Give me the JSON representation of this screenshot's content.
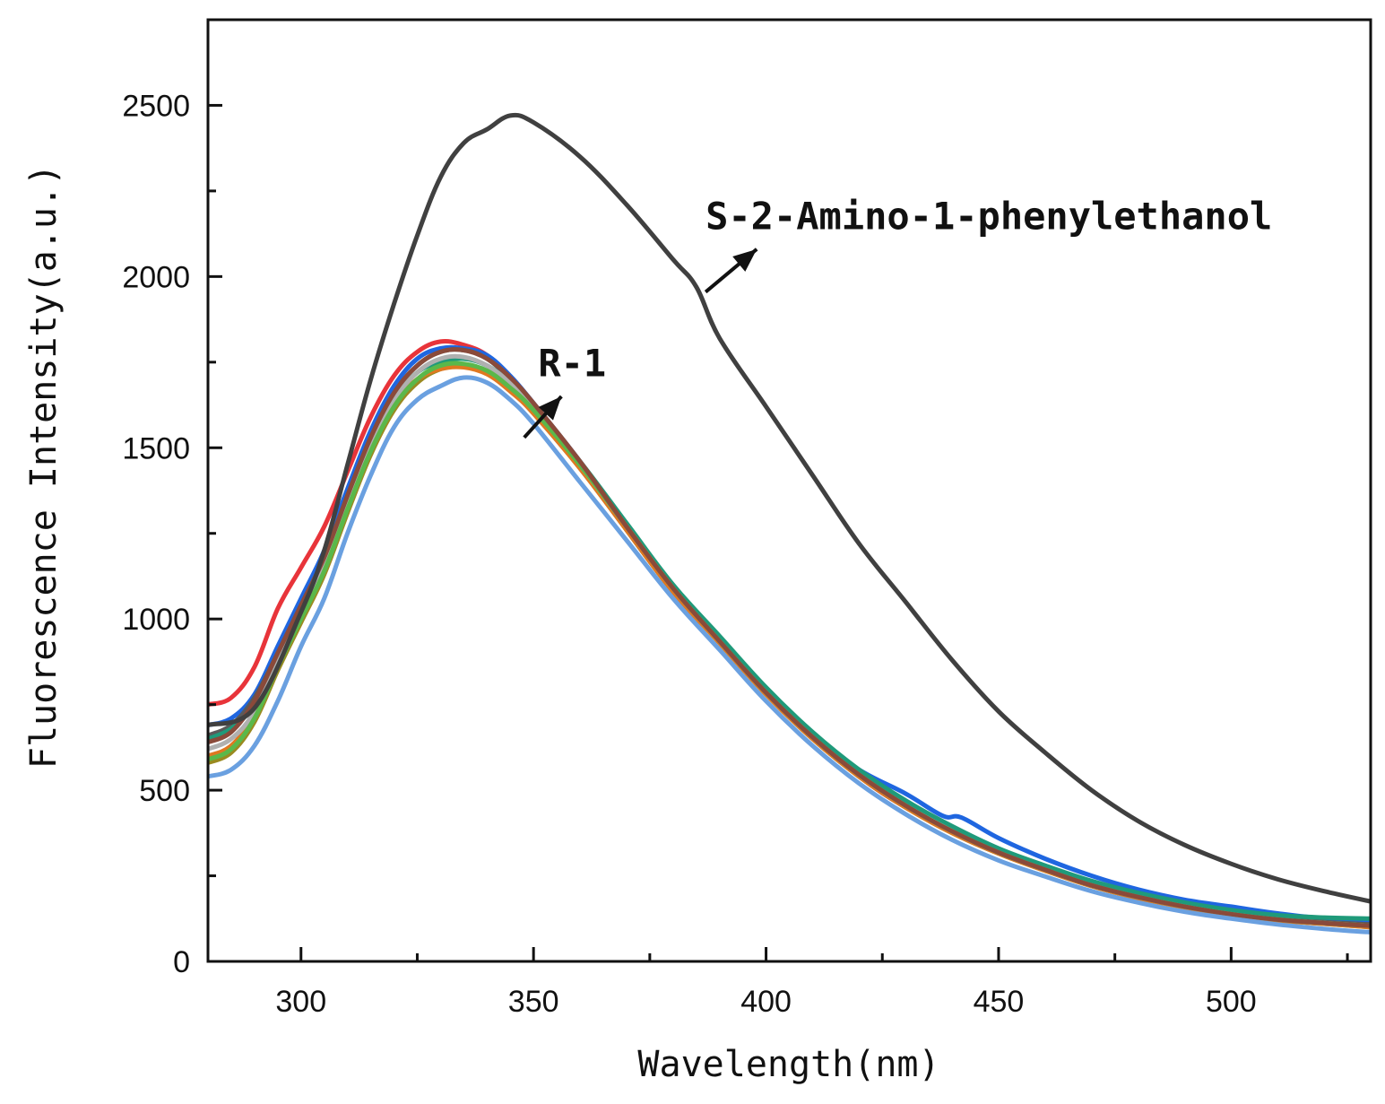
{
  "chart_data": {
    "type": "line",
    "title": "",
    "xlabel": "Wavelength(nm)",
    "ylabel": "Fluorescence Intensity(a.u.)",
    "xlim": [
      280,
      530
    ],
    "ylim": [
      0,
      2750
    ],
    "x_ticks": [
      300,
      350,
      400,
      450,
      500
    ],
    "x_minor_ticks": [
      325,
      375,
      425,
      475,
      525
    ],
    "y_ticks": [
      0,
      500,
      1000,
      1500,
      2000,
      2500
    ],
    "y_minor_ticks": [
      250,
      750,
      1250,
      1750,
      2250
    ],
    "grid": false,
    "annotations": [
      {
        "text": "S-2-Amino-1-phenylethanol",
        "x": 387,
        "y": 2175,
        "arrow_from": [
          387,
          1955
        ],
        "arrow_to": [
          398,
          2080
        ]
      },
      {
        "text": "R-1",
        "x": 351,
        "y": 1745,
        "arrow_from": [
          348,
          1530
        ],
        "arrow_to": [
          356,
          1650
        ]
      }
    ],
    "series": [
      {
        "name": "S-2-Amino-1-phenylethanol",
        "color": "#404040",
        "x": [
          280,
          290,
          300,
          305,
          310,
          315,
          320,
          325,
          330,
          335,
          340,
          345,
          350,
          360,
          370,
          380,
          385,
          390,
          400,
          410,
          420,
          430,
          440,
          450,
          460,
          470,
          480,
          490,
          500,
          510,
          520,
          530
        ],
        "y": [
          690,
          740,
          1020,
          1200,
          1450,
          1700,
          1920,
          2120,
          2290,
          2390,
          2430,
          2470,
          2450,
          2350,
          2210,
          2050,
          1970,
          1820,
          1620,
          1420,
          1220,
          1050,
          880,
          730,
          610,
          500,
          410,
          340,
          285,
          240,
          205,
          175
        ]
      },
      {
        "name": "R-1 (red)",
        "color": "#e8343a",
        "x": [
          280,
          285,
          290,
          295,
          300,
          305,
          310,
          315,
          320,
          325,
          330,
          335,
          340,
          345,
          350,
          360,
          370,
          380,
          390,
          400,
          410,
          420,
          430,
          440,
          450,
          460,
          470,
          480,
          490,
          500,
          510,
          520,
          530
        ],
        "y": [
          750,
          770,
          860,
          1030,
          1150,
          1270,
          1430,
          1590,
          1710,
          1780,
          1810,
          1800,
          1770,
          1700,
          1620,
          1450,
          1270,
          1090,
          940,
          790,
          660,
          540,
          450,
          380,
          320,
          270,
          225,
          190,
          162,
          140,
          125,
          115,
          110
        ]
      },
      {
        "name": "R-1 (blue)",
        "color": "#1f66e0",
        "x": [
          280,
          285,
          290,
          295,
          300,
          305,
          310,
          315,
          320,
          325,
          330,
          335,
          340,
          345,
          350,
          360,
          370,
          380,
          390,
          400,
          410,
          420,
          430,
          438,
          442,
          450,
          460,
          470,
          480,
          490,
          500,
          510,
          520,
          530
        ],
        "y": [
          690,
          710,
          780,
          920,
          1060,
          1200,
          1380,
          1550,
          1680,
          1760,
          1790,
          1790,
          1770,
          1710,
          1630,
          1460,
          1270,
          1090,
          940,
          790,
          660,
          560,
          490,
          425,
          420,
          360,
          300,
          250,
          210,
          180,
          160,
          140,
          125,
          115
        ]
      },
      {
        "name": "R-1 (dark gray)",
        "color": "#5a5a5a",
        "x": [
          280,
          285,
          290,
          295,
          300,
          305,
          310,
          315,
          320,
          325,
          330,
          335,
          340,
          345,
          350,
          360,
          370,
          380,
          390,
          400,
          410,
          420,
          430,
          440,
          450,
          460,
          470,
          480,
          490,
          500,
          510,
          520,
          530
        ],
        "y": [
          660,
          690,
          770,
          900,
          1040,
          1180,
          1360,
          1530,
          1660,
          1740,
          1780,
          1785,
          1760,
          1700,
          1620,
          1450,
          1260,
          1080,
          930,
          780,
          650,
          540,
          450,
          380,
          320,
          270,
          225,
          190,
          162,
          140,
          125,
          115,
          108
        ]
      },
      {
        "name": "R-1 (teal)",
        "color": "#1f9a7a",
        "x": [
          280,
          285,
          290,
          295,
          300,
          305,
          310,
          315,
          320,
          325,
          330,
          335,
          340,
          345,
          350,
          360,
          370,
          380,
          390,
          400,
          410,
          420,
          430,
          440,
          450,
          460,
          470,
          480,
          490,
          500,
          510,
          520,
          530
        ],
        "y": [
          650,
          680,
          750,
          880,
          1020,
          1160,
          1340,
          1510,
          1640,
          1720,
          1750,
          1760,
          1740,
          1690,
          1620,
          1460,
          1280,
          1100,
          950,
          800,
          670,
          560,
          470,
          395,
          330,
          280,
          235,
          200,
          172,
          150,
          135,
          128,
          125
        ]
      },
      {
        "name": "R-1 (olive)",
        "color": "#9a8a20",
        "x": [
          280,
          285,
          290,
          295,
          300,
          305,
          310,
          315,
          320,
          325,
          330,
          335,
          340,
          345,
          350,
          360,
          370,
          380,
          390,
          400,
          410,
          420,
          430,
          440,
          450,
          460,
          470,
          480,
          490,
          500,
          510,
          520,
          530
        ],
        "y": [
          580,
          610,
          700,
          850,
          990,
          1130,
          1310,
          1480,
          1610,
          1690,
          1730,
          1740,
          1720,
          1670,
          1600,
          1440,
          1260,
          1080,
          930,
          780,
          650,
          540,
          450,
          375,
          315,
          265,
          220,
          185,
          158,
          136,
          120,
          110,
          100
        ]
      },
      {
        "name": "R-1 (orange)",
        "color": "#e07820",
        "x": [
          280,
          285,
          290,
          295,
          300,
          305,
          310,
          315,
          320,
          325,
          330,
          335,
          340,
          345,
          350,
          360,
          370,
          380,
          390,
          400,
          410,
          420,
          430,
          440,
          450,
          460,
          470,
          480,
          490,
          500,
          510,
          520,
          530
        ],
        "y": [
          600,
          630,
          720,
          870,
          1010,
          1150,
          1330,
          1500,
          1630,
          1700,
          1730,
          1735,
          1715,
          1665,
          1600,
          1440,
          1260,
          1080,
          930,
          780,
          650,
          540,
          450,
          375,
          315,
          265,
          220,
          185,
          158,
          136,
          120,
          110,
          100
        ]
      },
      {
        "name": "R-1 (light gray)",
        "color": "#b0b0b0",
        "x": [
          280,
          285,
          290,
          295,
          300,
          305,
          310,
          315,
          320,
          325,
          330,
          335,
          340,
          345,
          350,
          360,
          370,
          380,
          390,
          400,
          410,
          420,
          430,
          440,
          450,
          460,
          470,
          480,
          490,
          500,
          510,
          520,
          530
        ],
        "y": [
          620,
          650,
          730,
          880,
          1020,
          1160,
          1340,
          1510,
          1640,
          1720,
          1760,
          1765,
          1740,
          1690,
          1620,
          1450,
          1270,
          1090,
          935,
          785,
          655,
          545,
          455,
          380,
          318,
          268,
          222,
          188,
          160,
          138,
          122,
          112,
          104
        ]
      },
      {
        "name": "R-1 (green)",
        "color": "#5ab84a",
        "x": [
          280,
          285,
          290,
          295,
          300,
          305,
          310,
          315,
          320,
          325,
          330,
          335,
          340,
          345,
          350,
          360,
          370,
          380,
          390,
          400,
          410,
          420,
          430,
          440,
          450,
          460,
          470,
          480,
          490,
          500,
          510,
          520,
          530
        ],
        "y": [
          590,
          620,
          710,
          860,
          1000,
          1140,
          1320,
          1490,
          1620,
          1700,
          1740,
          1745,
          1725,
          1675,
          1610,
          1450,
          1270,
          1090,
          935,
          785,
          655,
          545,
          455,
          380,
          318,
          268,
          222,
          188,
          160,
          138,
          122,
          112,
          104
        ]
      },
      {
        "name": "R-1 (brown)",
        "color": "#8a4a3a",
        "x": [
          280,
          285,
          290,
          295,
          300,
          305,
          310,
          315,
          320,
          325,
          330,
          335,
          340,
          345,
          350,
          360,
          370,
          380,
          390,
          400,
          410,
          420,
          430,
          440,
          450,
          460,
          470,
          480,
          490,
          500,
          510,
          520,
          530
        ],
        "y": [
          640,
          670,
          760,
          900,
          1040,
          1180,
          1360,
          1530,
          1660,
          1740,
          1780,
          1785,
          1760,
          1705,
          1630,
          1460,
          1270,
          1090,
          935,
          785,
          655,
          545,
          455,
          380,
          318,
          268,
          222,
          188,
          160,
          138,
          122,
          112,
          104
        ]
      },
      {
        "name": "R-1 (light blue)",
        "color": "#6aa0e0",
        "x": [
          280,
          285,
          290,
          295,
          300,
          305,
          310,
          315,
          320,
          325,
          330,
          335,
          340,
          345,
          350,
          360,
          370,
          380,
          390,
          400,
          410,
          420,
          430,
          440,
          450,
          460,
          470,
          480,
          490,
          500,
          510,
          520,
          530
        ],
        "y": [
          540,
          560,
          630,
          760,
          920,
          1060,
          1250,
          1420,
          1560,
          1640,
          1680,
          1705,
          1690,
          1640,
          1570,
          1400,
          1230,
          1060,
          910,
          760,
          630,
          520,
          430,
          355,
          295,
          248,
          205,
          172,
          145,
          125,
          108,
          95,
          85
        ]
      }
    ]
  }
}
